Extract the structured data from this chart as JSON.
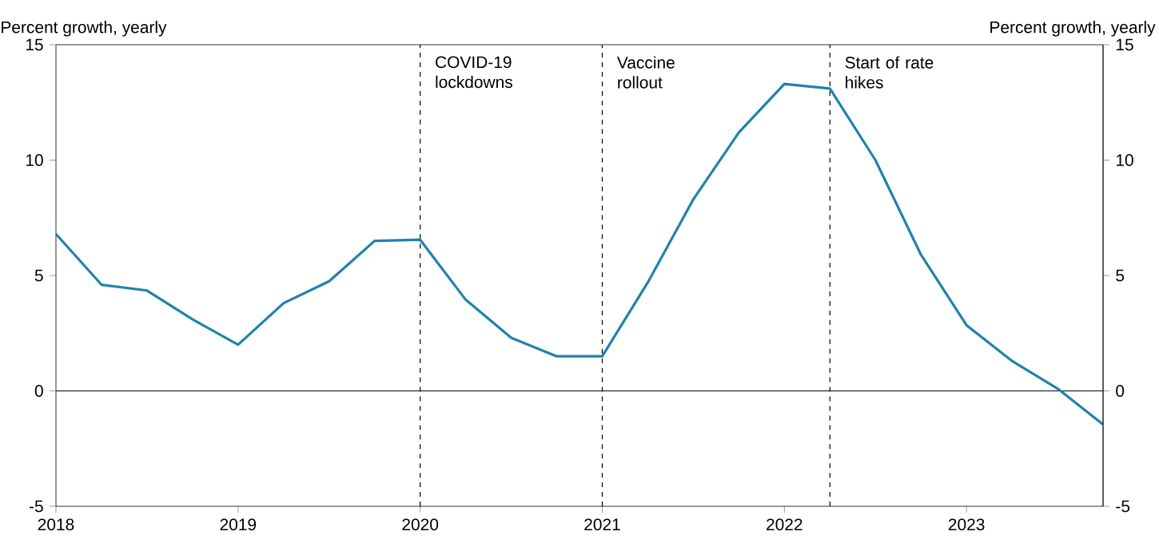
{
  "chart_data": {
    "type": "line",
    "ylabel": "Percent growth, yearly",
    "y2label": "Percent growth, yearly",
    "x": [
      2018.0,
      2018.25,
      2018.5,
      2018.75,
      2019.0,
      2019.25,
      2019.5,
      2019.75,
      2020.0,
      2020.25,
      2020.5,
      2020.75,
      2021.0,
      2021.25,
      2021.5,
      2021.75,
      2022.0,
      2022.25,
      2022.5,
      2022.75,
      2023.0,
      2023.25,
      2023.5,
      2023.75
    ],
    "values": [
      6.8,
      4.6,
      4.35,
      3.1,
      2.0,
      3.8,
      4.75,
      6.5,
      6.55,
      3.95,
      2.3,
      1.5,
      1.5,
      4.7,
      8.3,
      11.2,
      13.3,
      13.1,
      10.0,
      5.9,
      2.85,
      1.3,
      0.1,
      -1.45
    ],
    "color": "#1f83ad",
    "xlim": [
      2018,
      2023.75
    ],
    "xticks": [
      2018,
      2019,
      2020,
      2021,
      2022,
      2023
    ],
    "ylim": [
      -5,
      15
    ],
    "yticks": [
      -5,
      0,
      5,
      10,
      15
    ],
    "y2lim": [
      -5,
      15
    ],
    "y2ticks": [
      -5,
      0,
      5,
      10,
      15
    ],
    "ref_lines": [
      {
        "axis": "y",
        "value": 0,
        "color": "#000000",
        "line_style": "solid"
      },
      {
        "axis": "x",
        "value": 2020,
        "label": "COVID-19 lockdowns",
        "color": "#000000",
        "line_style": "dashed"
      },
      {
        "axis": "x",
        "value": 2021,
        "label": "Vaccine rollout",
        "color": "#000000",
        "line_style": "dashed"
      },
      {
        "axis": "x",
        "value": 2022.25,
        "label": "Start of rate hikes",
        "color": "#000000",
        "line_style": "dashed"
      }
    ]
  }
}
